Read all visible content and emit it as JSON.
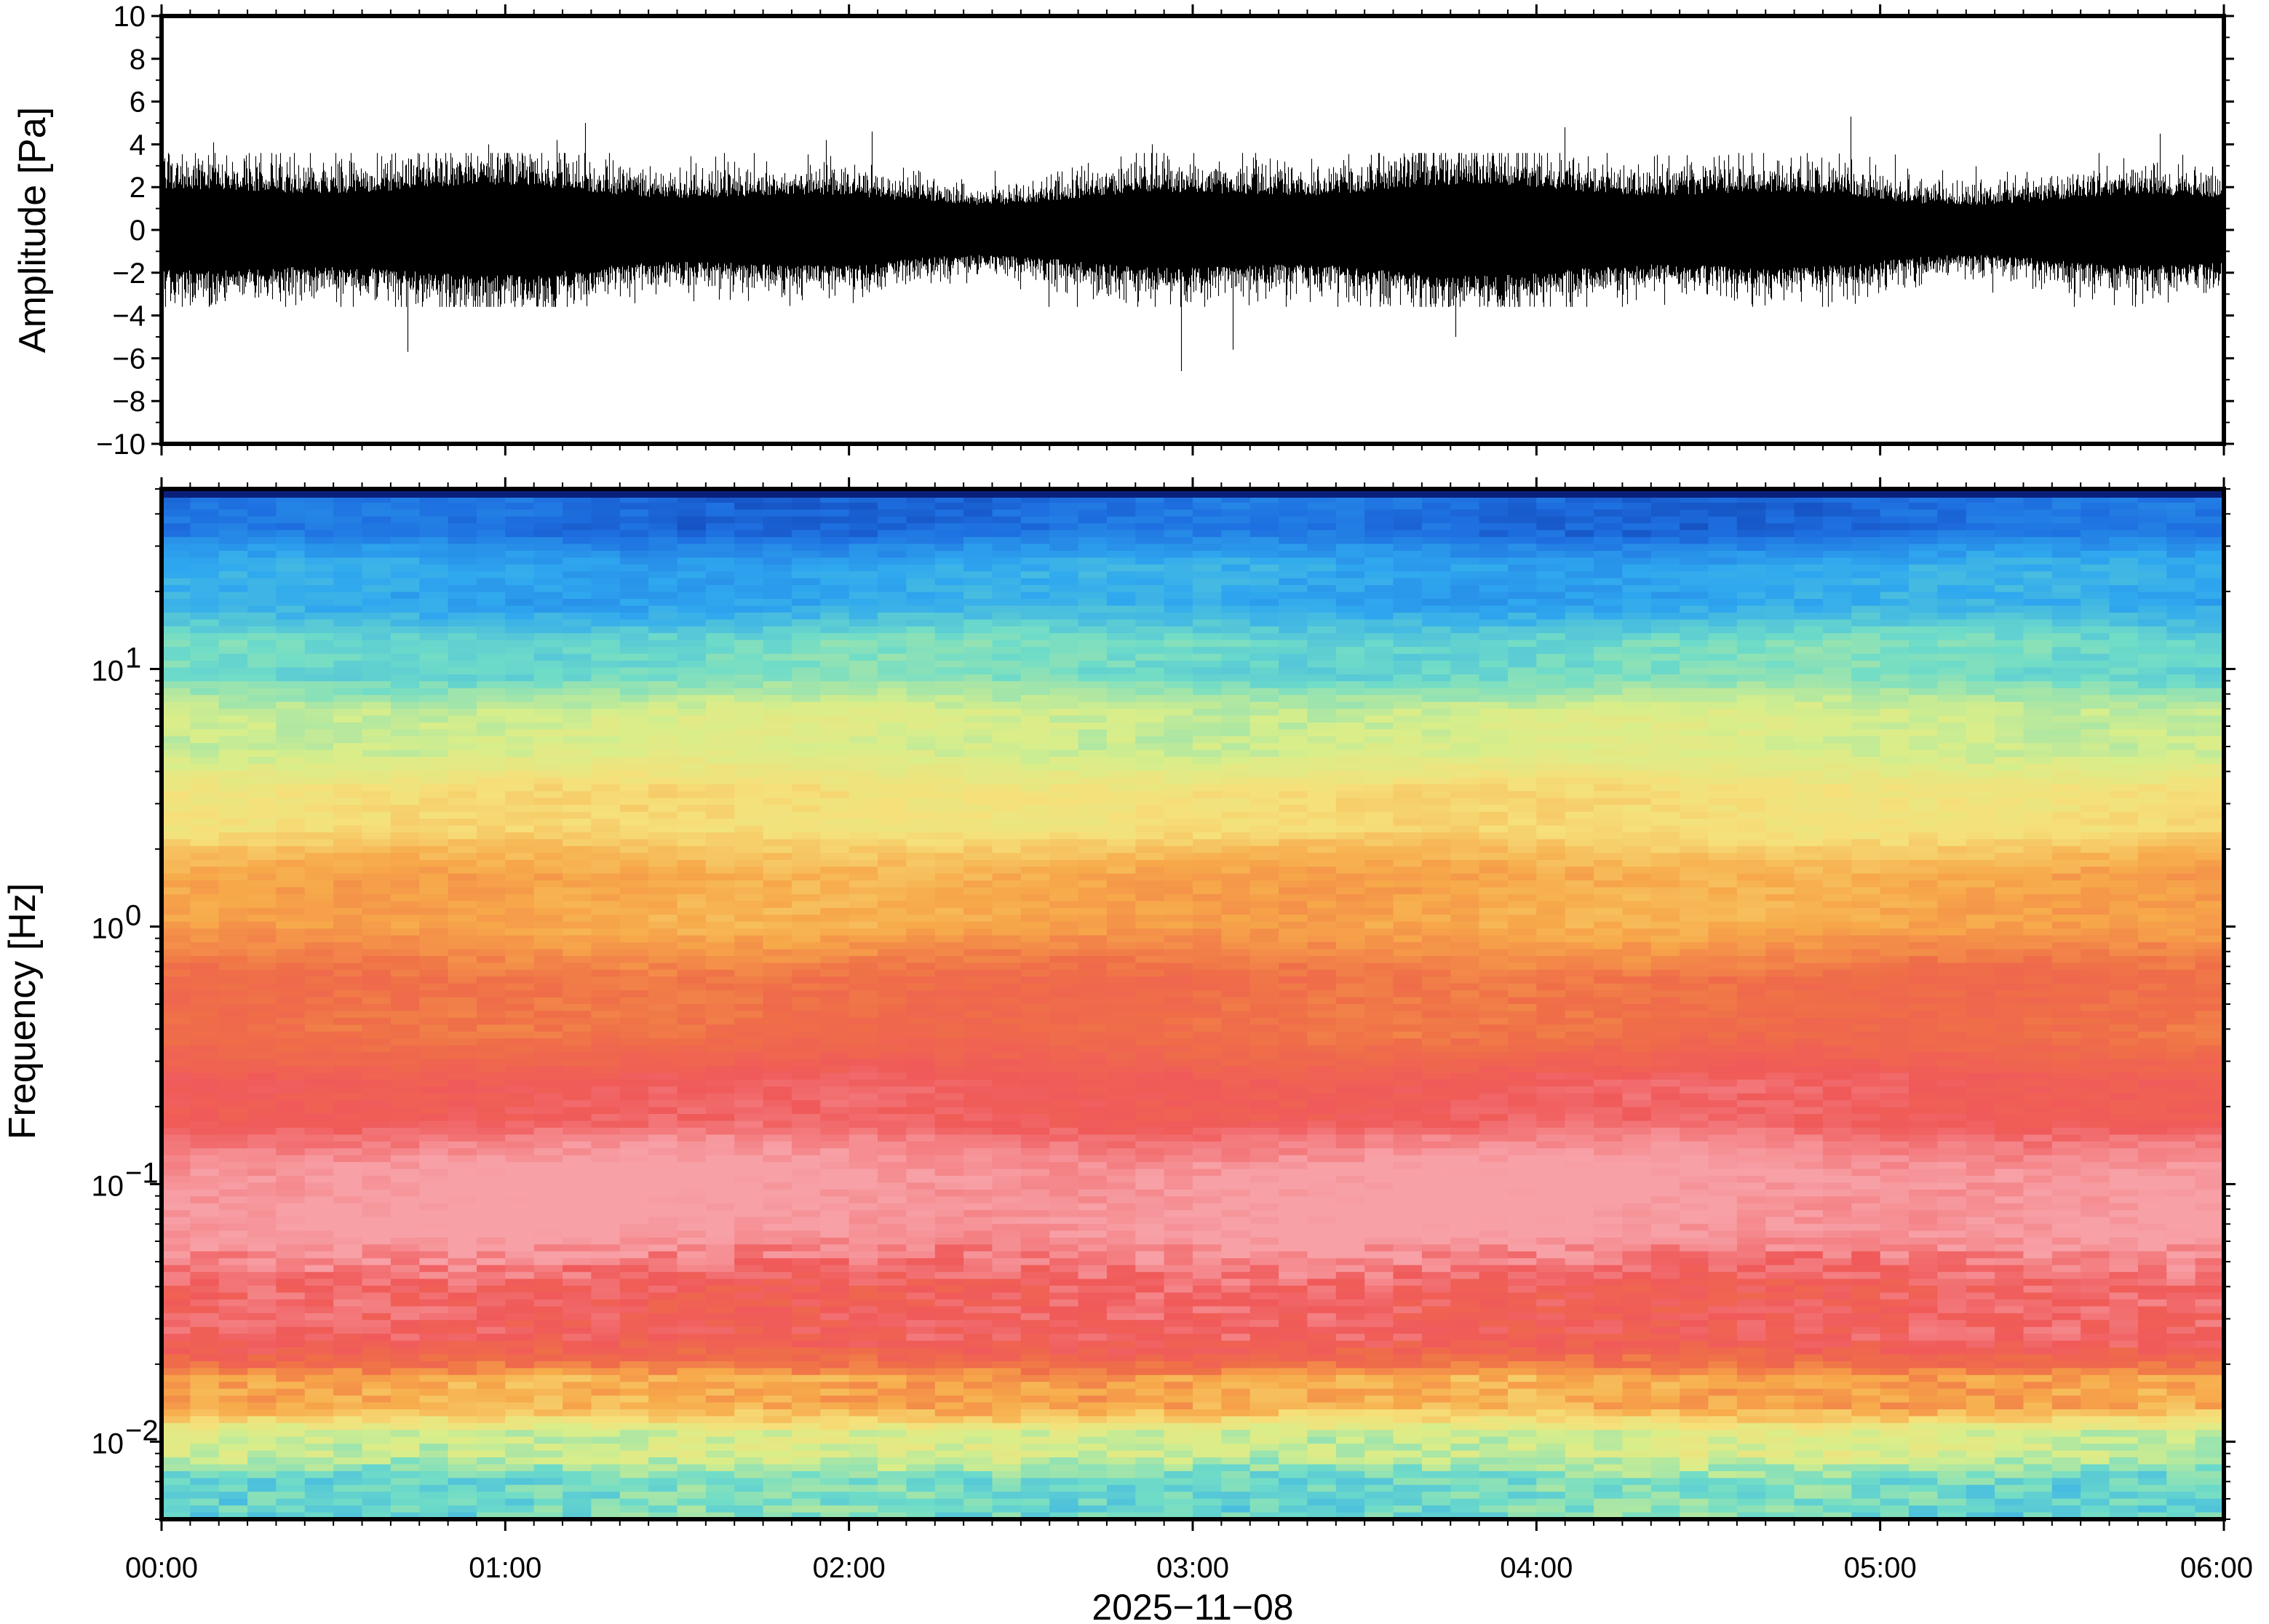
{
  "chart_data": [
    {
      "type": "line",
      "panel": "waveform",
      "ylabel": "Amplitude [Pa]",
      "ylim": [
        -10,
        10
      ],
      "yticks": [
        "10",
        "8",
        "6",
        "4",
        "2",
        "0",
        "−2",
        "−4",
        "−6",
        "−8",
        "−10"
      ],
      "ytick_values": [
        10,
        8,
        6,
        4,
        2,
        0,
        -2,
        -4,
        -6,
        -8,
        -10
      ],
      "grid": false,
      "series": [
        {
          "typical_envelope": 2.2,
          "peak_values": [
            {
              "time": "00:09",
              "value": 4.1
            },
            {
              "time": "00:43",
              "value": -5.7
            },
            {
              "time": "00:57",
              "value": 4.0
            },
            {
              "time": "01:09",
              "value": 4.2
            },
            {
              "time": "01:14",
              "value": 5.0
            },
            {
              "time": "01:56",
              "value": 4.2
            },
            {
              "time": "02:04",
              "value": 4.6
            },
            {
              "time": "02:53",
              "value": 4.0
            },
            {
              "time": "02:58",
              "value": -6.6
            },
            {
              "time": "03:07",
              "value": -5.6
            },
            {
              "time": "03:46",
              "value": -5.0
            },
            {
              "time": "04:05",
              "value": 4.8
            },
            {
              "time": "04:55",
              "value": 5.3
            },
            {
              "time": "05:49",
              "value": 4.5
            }
          ]
        }
      ]
    },
    {
      "type": "heatmap",
      "panel": "spectrogram",
      "ylabel": "Frequency [Hz]",
      "y_scale": "log",
      "ylim": [
        0.005,
        50
      ],
      "yticks": [
        {
          "base": "10",
          "exp": "1",
          "value": 10
        },
        {
          "base": "10",
          "exp": "0",
          "value": 1
        },
        {
          "base": "10",
          "exp": "−1",
          "value": 0.1
        },
        {
          "base": "10",
          "exp": "−2",
          "value": 0.01
        }
      ],
      "xlabel": "2025−11−08",
      "xticks": [
        "00:00",
        "01:00",
        "02:00",
        "03:00",
        "04:00",
        "05:00",
        "06:00"
      ],
      "xlim": [
        "00:00",
        "06:00"
      ],
      "colormap": [
        "#0a2a9a",
        "#1e6fe0",
        "#2fa8ef",
        "#6fdcc8",
        "#d8ee8a",
        "#f6e07a",
        "#f7a94a",
        "#ef6e48",
        "#f05a5a",
        "#f7a0a6"
      ],
      "frequency_bands": [
        {
          "f_low": 30,
          "f_high": 50,
          "color": "#1e6fe0"
        },
        {
          "f_low": 15,
          "f_high": 30,
          "color": "#2fa8ef"
        },
        {
          "f_low": 8,
          "f_high": 15,
          "color": "#6fdcc8"
        },
        {
          "f_low": 4,
          "f_high": 8,
          "color": "#d8ee8a"
        },
        {
          "f_low": 2,
          "f_high": 4,
          "color": "#f6e07a"
        },
        {
          "f_low": 0.8,
          "f_high": 2,
          "color": "#f7a94a"
        },
        {
          "f_low": 0.3,
          "f_high": 0.8,
          "color": "#ef6e48"
        },
        {
          "f_low": 0.15,
          "f_high": 0.3,
          "color": "#f05a5a"
        },
        {
          "f_low": 0.05,
          "f_high": 0.15,
          "color": "#f7a0a6"
        },
        {
          "f_low": 0.02,
          "f_high": 0.05,
          "color": "#f05a5a"
        },
        {
          "f_low": 0.012,
          "f_high": 0.02,
          "color": "#f7a94a"
        },
        {
          "f_low": 0.008,
          "f_high": 0.012,
          "color": "#d8ee8a"
        },
        {
          "f_low": 0.005,
          "f_high": 0.008,
          "color": "#6fdcc8"
        }
      ]
    }
  ]
}
